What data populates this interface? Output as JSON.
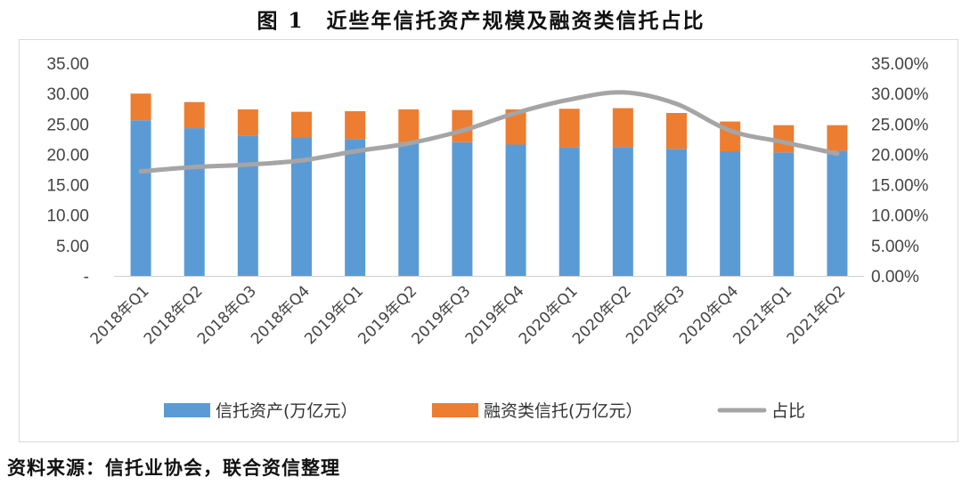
{
  "title": "图 1　近些年信托资产规模及融资类信托占比",
  "source": "资料来源：信托业协会，联合资信整理",
  "chart_data": {
    "type": "bar",
    "stacked": true,
    "categories": [
      "2018年Q1",
      "2018年Q2",
      "2018年Q3",
      "2018年Q4",
      "2019年Q1",
      "2019年Q2",
      "2019年Q3",
      "2019年Q4",
      "2020年Q1",
      "2020年Q2",
      "2020年Q3",
      "2020年Q4",
      "2021年Q1",
      "2021年Q2"
    ],
    "series": [
      {
        "name": "信托资产(万亿元）",
        "type": "bar",
        "axis": "left",
        "color": "#5b9bd5",
        "values": [
          25.6,
          24.3,
          23.1,
          22.7,
          22.5,
          22.0,
          22.0,
          21.6,
          21.2,
          21.2,
          20.9,
          20.5,
          20.3,
          20.6
        ]
      },
      {
        "name": "融资类信托(万亿元）",
        "type": "bar",
        "axis": "left",
        "color": "#ed7d31",
        "values": [
          4.4,
          4.3,
          4.3,
          4.3,
          4.6,
          5.4,
          5.3,
          5.8,
          6.3,
          6.4,
          5.9,
          4.9,
          4.5,
          4.2
        ]
      },
      {
        "name": "占比",
        "type": "line",
        "axis": "right",
        "color": "#a5a5a5",
        "values": [
          17.2,
          17.9,
          18.3,
          19.0,
          20.5,
          21.8,
          23.9,
          26.8,
          29.0,
          30.2,
          28.3,
          23.9,
          22.0,
          20.1
        ]
      }
    ],
    "y_left": {
      "ticks": [
        "-",
        "5.00",
        "10.00",
        "15.00",
        "20.00",
        "25.00",
        "30.00",
        "35.00"
      ],
      "ylim": [
        0,
        35
      ]
    },
    "y_right": {
      "ticks": [
        "0.00%",
        "5.00%",
        "10.00%",
        "15.00%",
        "20.00%",
        "25.00%",
        "30.00%",
        "35.00%"
      ],
      "ylim": [
        0,
        35
      ]
    },
    "grid": false,
    "legend_position": "bottom"
  }
}
